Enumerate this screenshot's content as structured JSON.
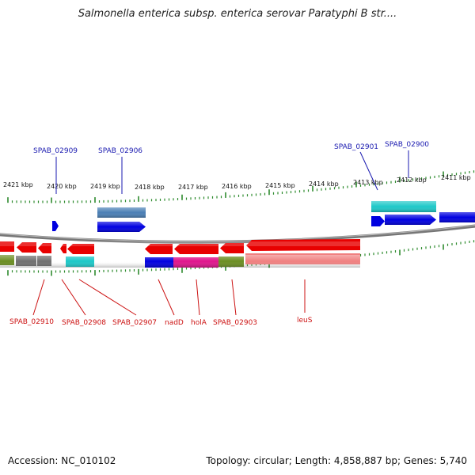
{
  "title": "Salmonella enterica subsp. enterica serovar Paratyphi B str....",
  "footer": {
    "accession": "Accession: NC_010102",
    "meta": "Topology: circular; Length: 4,858,887 bp; Genes: 5,740"
  },
  "tick_labels": [
    "2421 kbp",
    "2420 kbp",
    "2419 kbp",
    "2418 kbp",
    "2417 kbp",
    "2416 kbp",
    "2415 kbp",
    "2414 kbp",
    "2413 kbp",
    "2412 kbp",
    "2411 kbp"
  ],
  "top_labels": [
    "SPAB_02909",
    "SPAB_02906",
    "SPAB_02901",
    "SPAB_02900"
  ],
  "bottom_labels": [
    "SPAB_02910",
    "SPAB_02908",
    "SPAB_02907",
    "nadD",
    "holA",
    "SPAB_02903",
    "leuS"
  ],
  "colors": {
    "red": "#e80000",
    "blue": "#0000e0",
    "steelblue": "#4a7fb5",
    "cyan": "#1ec8c8",
    "olive": "#6b8e23",
    "gray": "#707070",
    "magenta": "#e0148c",
    "salmon": "#f08080",
    "tick": "#2e8b2e"
  }
}
